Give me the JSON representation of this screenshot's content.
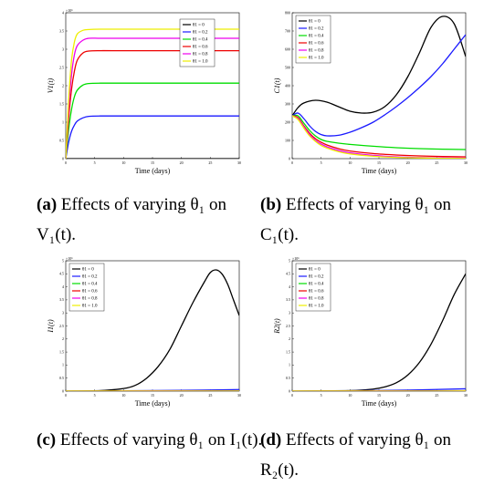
{
  "chart_data": [
    {
      "type": "line",
      "id": "a",
      "xlabel": "Time (days)",
      "ylabel": "V1(t)",
      "y_exponent": "×10⁶",
      "xlim": [
        0,
        30
      ],
      "ylim": [
        0,
        4
      ],
      "xticks": [
        0,
        5,
        10,
        15,
        20,
        25,
        30
      ],
      "yticks": [
        0,
        0.5,
        1,
        1.5,
        2,
        2.5,
        3,
        3.5,
        4
      ],
      "series": [
        {
          "name": "θ1 = 0",
          "color": "#000000",
          "x": [
            0,
            30
          ],
          "y": [
            0,
            0
          ]
        },
        {
          "name": "θ1 = 0.2",
          "color": "#1a1aff",
          "x": [
            0,
            0.5,
            1,
            1.5,
            2,
            3,
            4,
            6,
            10,
            20,
            30
          ],
          "y": [
            0,
            0.45,
            0.75,
            0.92,
            1.03,
            1.12,
            1.16,
            1.17,
            1.17,
            1.17,
            1.17
          ]
        },
        {
          "name": "θ1 = 0.4",
          "color": "#00dd00",
          "x": [
            0,
            0.5,
            1,
            1.5,
            2,
            3,
            4,
            6,
            10,
            20,
            30
          ],
          "y": [
            0,
            0.8,
            1.35,
            1.7,
            1.88,
            2.02,
            2.06,
            2.07,
            2.07,
            2.07,
            2.07
          ]
        },
        {
          "name": "θ1 = 0.6",
          "color": "#ee0000",
          "x": [
            0,
            0.5,
            1,
            1.5,
            2,
            3,
            4,
            6,
            10,
            20,
            30
          ],
          "y": [
            0,
            1.1,
            1.9,
            2.4,
            2.7,
            2.9,
            2.95,
            2.96,
            2.96,
            2.96,
            2.96
          ]
        },
        {
          "name": "θ1 = 0.8",
          "color": "#ee00ee",
          "x": [
            0,
            0.5,
            1,
            1.5,
            2,
            3,
            4,
            6,
            10,
            20,
            30
          ],
          "y": [
            0,
            1.35,
            2.3,
            2.85,
            3.1,
            3.25,
            3.3,
            3.3,
            3.3,
            3.3,
            3.3
          ]
        },
        {
          "name": "θ1 = 1.0",
          "color": "#eeee00",
          "x": [
            0,
            0.5,
            1,
            1.5,
            2,
            3,
            4,
            6,
            10,
            20,
            30
          ],
          "y": [
            0,
            1.6,
            2.7,
            3.2,
            3.42,
            3.52,
            3.54,
            3.55,
            3.55,
            3.55,
            3.55
          ]
        }
      ]
    },
    {
      "type": "line",
      "id": "b",
      "xlabel": "Time (days)",
      "ylabel": "C1(t)",
      "xlim": [
        0,
        30
      ],
      "ylim": [
        0,
        800
      ],
      "xticks": [
        0,
        5,
        10,
        15,
        20,
        25,
        30
      ],
      "yticks": [
        0,
        100,
        200,
        300,
        400,
        500,
        600,
        700,
        800
      ],
      "series": [
        {
          "name": "θ1 = 0",
          "color": "#000000",
          "x": [
            0,
            1,
            2,
            4,
            6,
            8,
            10,
            12,
            14,
            16,
            18,
            20,
            22,
            24,
            26,
            28,
            30
          ],
          "y": [
            235,
            280,
            305,
            320,
            310,
            285,
            260,
            250,
            255,
            285,
            350,
            450,
            580,
            720,
            780,
            740,
            560
          ]
        },
        {
          "name": "θ1 = 0.2",
          "color": "#1a1aff",
          "x": [
            0,
            1,
            2,
            3,
            4,
            5,
            6,
            8,
            10,
            12,
            14,
            16,
            18,
            20,
            22,
            24,
            26,
            28,
            30
          ],
          "y": [
            235,
            250,
            220,
            180,
            150,
            132,
            125,
            128,
            145,
            170,
            200,
            240,
            285,
            335,
            390,
            450,
            520,
            600,
            680
          ]
        },
        {
          "name": "θ1 = 0.4",
          "color": "#00dd00",
          "x": [
            0,
            1,
            2,
            3,
            4,
            5,
            6,
            8,
            10,
            14,
            18,
            22,
            26,
            30
          ],
          "y": [
            235,
            235,
            195,
            155,
            125,
            105,
            95,
            85,
            78,
            68,
            60,
            55,
            52,
            50
          ]
        },
        {
          "name": "θ1 = 0.6",
          "color": "#ee0000",
          "x": [
            0,
            1,
            2,
            3,
            4,
            5,
            6,
            8,
            10,
            14,
            18,
            22,
            26,
            30
          ],
          "y": [
            235,
            225,
            180,
            140,
            110,
            90,
            75,
            55,
            42,
            28,
            20,
            15,
            12,
            10
          ]
        },
        {
          "name": "θ1 = 0.8",
          "color": "#ee00ee",
          "x": [
            0,
            1,
            2,
            3,
            4,
            5,
            6,
            8,
            10,
            14,
            18,
            22,
            26,
            30
          ],
          "y": [
            235,
            220,
            175,
            132,
            100,
            80,
            65,
            45,
            32,
            18,
            10,
            6,
            4,
            3
          ]
        },
        {
          "name": "θ1 = 1.0",
          "color": "#eeee00",
          "x": [
            0,
            1,
            2,
            3,
            4,
            5,
            6,
            8,
            10,
            14,
            18,
            22,
            26,
            30
          ],
          "y": [
            235,
            215,
            168,
            125,
            95,
            72,
            58,
            38,
            26,
            13,
            7,
            4,
            2,
            1
          ]
        }
      ]
    },
    {
      "type": "line",
      "id": "c",
      "xlabel": "Time (days)",
      "ylabel": "I1(t)",
      "y_exponent": "×10⁶",
      "xlim": [
        0,
        30
      ],
      "ylim": [
        0,
        5
      ],
      "xticks": [
        0,
        5,
        10,
        15,
        20,
        25,
        30
      ],
      "yticks": [
        0,
        0.5,
        1,
        1.5,
        2,
        2.5,
        3,
        3.5,
        4,
        4.5,
        5
      ],
      "series": [
        {
          "name": "θ1 = 0",
          "color": "#000000",
          "x": [
            0,
            6,
            10,
            12,
            14,
            16,
            18,
            20,
            22,
            24,
            25,
            26,
            27,
            28,
            29,
            30
          ],
          "y": [
            0,
            0.02,
            0.1,
            0.22,
            0.5,
            0.95,
            1.6,
            2.5,
            3.4,
            4.2,
            4.55,
            4.65,
            4.5,
            4.1,
            3.5,
            2.9
          ]
        },
        {
          "name": "θ1 = 0.2",
          "color": "#1a1aff",
          "x": [
            0,
            10,
            20,
            30
          ],
          "y": [
            0,
            0.01,
            0.03,
            0.06
          ]
        },
        {
          "name": "θ1 = 0.4",
          "color": "#00dd00",
          "x": [
            0,
            30
          ],
          "y": [
            0,
            0.01
          ]
        },
        {
          "name": "θ1 = 0.6",
          "color": "#ee0000",
          "x": [
            0,
            30
          ],
          "y": [
            0,
            0.005
          ]
        },
        {
          "name": "θ1 = 0.8",
          "color": "#ee00ee",
          "x": [
            0,
            30
          ],
          "y": [
            0,
            0.003
          ]
        },
        {
          "name": "θ1 = 1.0",
          "color": "#eeee00",
          "x": [
            0,
            30
          ],
          "y": [
            0,
            0.002
          ]
        }
      ]
    },
    {
      "type": "line",
      "id": "d",
      "xlabel": "Time (days)",
      "ylabel": "R2(t)",
      "y_exponent": "×10⁶",
      "xlim": [
        0,
        30
      ],
      "ylim": [
        0,
        5
      ],
      "xticks": [
        0,
        5,
        10,
        15,
        20,
        25,
        30
      ],
      "yticks": [
        0,
        0.5,
        1,
        1.5,
        2,
        2.5,
        3,
        3.5,
        4,
        4.5,
        5
      ],
      "series": [
        {
          "name": "θ1 = 0",
          "color": "#000000",
          "x": [
            0,
            10,
            14,
            16,
            18,
            20,
            22,
            24,
            26,
            28,
            30
          ],
          "y": [
            0,
            0.02,
            0.08,
            0.16,
            0.32,
            0.62,
            1.1,
            1.8,
            2.7,
            3.7,
            4.5
          ]
        },
        {
          "name": "θ1 = 0.2",
          "color": "#1a1aff",
          "x": [
            0,
            10,
            20,
            30
          ],
          "y": [
            0,
            0.01,
            0.04,
            0.09
          ]
        },
        {
          "name": "θ1 = 0.4",
          "color": "#00dd00",
          "x": [
            0,
            30
          ],
          "y": [
            0,
            0.01
          ]
        },
        {
          "name": "θ1 = 0.6",
          "color": "#ee0000",
          "x": [
            0,
            30
          ],
          "y": [
            0,
            0.005
          ]
        },
        {
          "name": "θ1 = 0.8",
          "color": "#ee00ee",
          "x": [
            0,
            30
          ],
          "y": [
            0,
            0.003
          ]
        },
        {
          "name": "θ1 = 1.0",
          "color": "#eeee00",
          "x": [
            0,
            30
          ],
          "y": [
            0,
            0.002
          ]
        }
      ]
    }
  ],
  "captions": {
    "a": {
      "label": "(a)",
      "text": "Effects of varying θ₁ on V₁(t)."
    },
    "b": {
      "label": "(b)",
      "text": "Effects of varying θ₁ on C₁(t)."
    },
    "c": {
      "label": "(c)",
      "text": "Effects of varying θ₁ on I₁(t)."
    },
    "d": {
      "label": "(d)",
      "text": "Effects of varying θ₁ on R₂(t)."
    }
  }
}
